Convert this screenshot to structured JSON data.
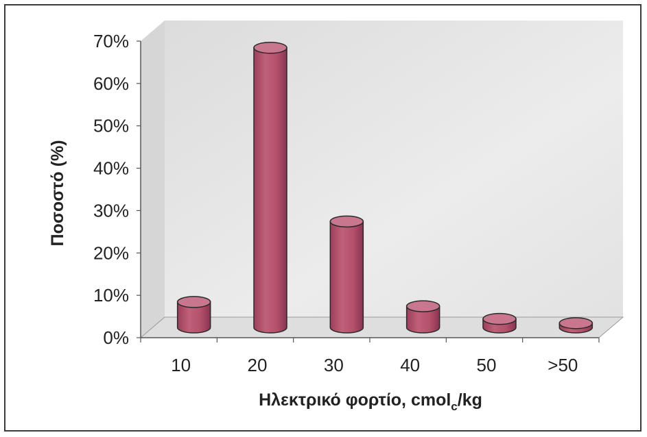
{
  "chart_data": {
    "type": "bar",
    "style": "3d-cylinder",
    "categories": [
      "10",
      "20",
      "30",
      "40",
      "50",
      ">50"
    ],
    "series": [
      {
        "values": [
          6,
          66,
          25,
          5,
          2,
          1
        ]
      }
    ],
    "ylabel": "Ποσοστό (%)",
    "xlabel": {
      "main": "Ηλεκτρικό φορτίο, cmol",
      "subscript": "c",
      "suffix": "/kg"
    },
    "yticks": [
      "0%",
      "10%",
      "20%",
      "30%",
      "40%",
      "50%",
      "60%",
      "70%"
    ],
    "ylim": [
      0,
      70
    ],
    "grid": false,
    "legend": "none",
    "colors": {
      "bar": "#b8546f",
      "bar_top": "#c9778e",
      "bar_outline": "#2a2a2a",
      "wall": "#e6e6e6",
      "floor": "#e0e0e0"
    }
  }
}
